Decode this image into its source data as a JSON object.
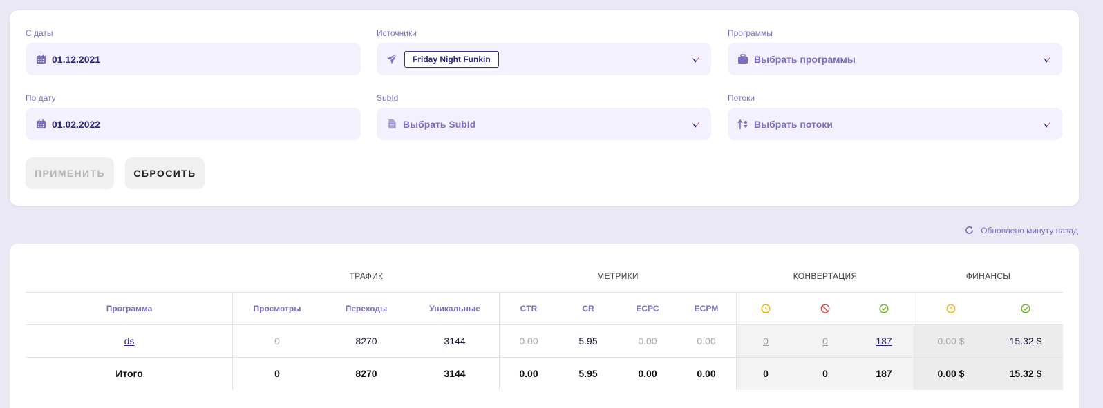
{
  "filters": {
    "date_from": {
      "label": "С даты",
      "value": "01.12.2021"
    },
    "date_to": {
      "label": "По дату",
      "value": "01.02.2022"
    },
    "sources": {
      "label": "Источники",
      "chip": "Friday Night Funkin"
    },
    "subid": {
      "label": "SubId",
      "placeholder": "Выбрать SubId"
    },
    "programs": {
      "label": "Программы",
      "placeholder": "Выбрать программы"
    },
    "streams": {
      "label": "Потоки",
      "placeholder": "Выбрать потоки"
    },
    "apply_label": "ПРИМЕНИТЬ",
    "reset_label": "СБРОСИТЬ"
  },
  "updated": {
    "text": "Обновлено минуту назад",
    "icon": "refresh-icon"
  },
  "table": {
    "groups": {
      "traffic": "ТРАФИК",
      "metrics": "МЕТРИКИ",
      "conversion": "КОНВЕРТАЦИЯ",
      "finance": "ФИНАНСЫ"
    },
    "columns": {
      "program": "Программа",
      "views": "Просмотры",
      "clicks": "Переходы",
      "unique": "Уникальные",
      "ctr": "CTR",
      "cr": "CR",
      "ecpc": "ECPC",
      "ecpm": "ECPM"
    },
    "status_icons": {
      "pending": "clock-icon",
      "rejected": "block-icon",
      "approved": "check-circle-icon"
    },
    "colors": {
      "pending": "#f0b400",
      "rejected": "#e04848",
      "approved": "#67b51e",
      "accent": "#7b6fc0"
    },
    "row": {
      "program": "ds",
      "views": "0",
      "clicks": "8270",
      "unique": "3144",
      "ctr": "0.00",
      "cr": "5.95",
      "ecpc": "0.00",
      "ecpm": "0.00",
      "conv_pending": "0",
      "conv_rejected": "0",
      "conv_approved": "187",
      "fin_pending": "0.00 $",
      "fin_approved": "15.32 $"
    },
    "total": {
      "label": "Итого",
      "views": "0",
      "clicks": "8270",
      "unique": "3144",
      "ctr": "0.00",
      "cr": "5.95",
      "ecpc": "0.00",
      "ecpm": "0.00",
      "conv_pending": "0",
      "conv_rejected": "0",
      "conv_approved": "187",
      "fin_pending": "0.00 $",
      "fin_approved": "15.32 $"
    }
  }
}
